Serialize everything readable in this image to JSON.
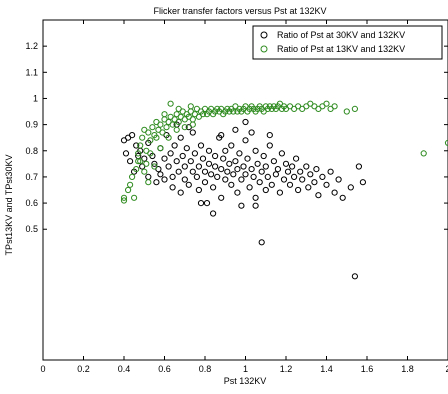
{
  "chart_data": {
    "type": "scatter",
    "title": "Flicker transfer factors versus Pst at 132KV",
    "xlabel": "Pst 132KV",
    "ylabel": "TPst13KV and TPst30KV",
    "xlim": [
      0,
      2
    ],
    "ylim": [
      0,
      1.3
    ],
    "x_ticks": [
      "0",
      "0.2",
      "0.4",
      "0.6",
      "0.8",
      "1",
      "1.2",
      "1.4",
      "1.6",
      "1.8",
      "2"
    ],
    "y_ticks": [
      "0.5",
      "0.6",
      "0.7",
      "0.8",
      "0.9",
      "1",
      "1.1",
      "1.2"
    ],
    "grid": false,
    "legend_position": "top-right",
    "series": [
      {
        "name": "Ratio of Pst at 30KV and 132KV",
        "color": "#000000",
        "marker": "circle-open",
        "points": [
          [
            0.4,
            0.84
          ],
          [
            0.42,
            0.85
          ],
          [
            0.44,
            0.86
          ],
          [
            0.41,
            0.79
          ],
          [
            0.43,
            0.76
          ],
          [
            0.45,
            0.72
          ],
          [
            0.46,
            0.82
          ],
          [
            0.48,
            0.8
          ],
          [
            0.47,
            0.78
          ],
          [
            0.49,
            0.74
          ],
          [
            0.5,
            0.77
          ],
          [
            0.52,
            0.7
          ],
          [
            0.52,
            0.83
          ],
          [
            0.54,
            0.78
          ],
          [
            0.55,
            0.75
          ],
          [
            0.56,
            0.68
          ],
          [
            0.57,
            0.73
          ],
          [
            0.58,
            0.81
          ],
          [
            0.58,
            0.71
          ],
          [
            0.6,
            0.69
          ],
          [
            0.6,
            0.77
          ],
          [
            0.61,
            0.86
          ],
          [
            0.62,
            0.74
          ],
          [
            0.63,
            0.79
          ],
          [
            0.64,
            0.7
          ],
          [
            0.64,
            0.66
          ],
          [
            0.65,
            0.82
          ],
          [
            0.66,
            0.76
          ],
          [
            0.67,
            0.72
          ],
          [
            0.68,
            0.85
          ],
          [
            0.68,
            0.64
          ],
          [
            0.69,
            0.78
          ],
          [
            0.7,
            0.74
          ],
          [
            0.7,
            0.69
          ],
          [
            0.71,
            0.81
          ],
          [
            0.72,
            0.67
          ],
          [
            0.73,
            0.76
          ],
          [
            0.74,
            0.72
          ],
          [
            0.74,
            0.87
          ],
          [
            0.75,
            0.79
          ],
          [
            0.76,
            0.7
          ],
          [
            0.77,
            0.74
          ],
          [
            0.77,
            0.65
          ],
          [
            0.78,
            0.82
          ],
          [
            0.79,
            0.77
          ],
          [
            0.8,
            0.72
          ],
          [
            0.8,
            0.68
          ],
          [
            0.81,
            0.6
          ],
          [
            0.82,
            0.75
          ],
          [
            0.82,
            0.8
          ],
          [
            0.83,
            0.71
          ],
          [
            0.84,
            0.66
          ],
          [
            0.85,
            0.78
          ],
          [
            0.85,
            0.74
          ],
          [
            0.86,
            0.7
          ],
          [
            0.87,
            0.85
          ],
          [
            0.88,
            0.73
          ],
          [
            0.88,
            0.62
          ],
          [
            0.89,
            0.77
          ],
          [
            0.9,
            0.69
          ],
          [
            0.9,
            0.8
          ],
          [
            0.91,
            0.72
          ],
          [
            0.92,
            0.75
          ],
          [
            0.93,
            0.67
          ],
          [
            0.93,
            0.82
          ],
          [
            0.94,
            0.71
          ],
          [
            0.95,
            0.76
          ],
          [
            0.96,
            0.64
          ],
          [
            0.96,
            0.73
          ],
          [
            0.97,
            0.79
          ],
          [
            0.98,
            0.69
          ],
          [
            0.99,
            0.74
          ],
          [
            1.0,
            0.71
          ],
          [
            1.0,
            0.84
          ],
          [
            1.01,
            0.77
          ],
          [
            1.02,
            0.66
          ],
          [
            1.03,
            0.73
          ],
          [
            1.04,
            0.7
          ],
          [
            1.05,
            0.8
          ],
          [
            1.05,
            0.62
          ],
          [
            1.06,
            0.75
          ],
          [
            1.07,
            0.68
          ],
          [
            1.08,
            0.72
          ],
          [
            1.09,
            0.78
          ],
          [
            1.1,
            0.65
          ],
          [
            1.1,
            0.74
          ],
          [
            1.11,
            0.7
          ],
          [
            1.12,
            0.82
          ],
          [
            1.13,
            0.67
          ],
          [
            1.14,
            0.76
          ],
          [
            1.15,
            0.71
          ],
          [
            1.16,
            0.73
          ],
          [
            1.17,
            0.64
          ],
          [
            1.18,
            0.79
          ],
          [
            1.19,
            0.69
          ],
          [
            1.2,
            0.75
          ],
          [
            1.21,
            0.72
          ],
          [
            1.22,
            0.67
          ],
          [
            1.23,
            0.74
          ],
          [
            1.24,
            0.7
          ],
          [
            1.25,
            0.77
          ],
          [
            1.26,
            0.65
          ],
          [
            1.27,
            0.72
          ],
          [
            1.28,
            0.69
          ],
          [
            1.3,
            0.74
          ],
          [
            1.31,
            0.66
          ],
          [
            1.32,
            0.71
          ],
          [
            1.34,
            0.68
          ],
          [
            1.35,
            0.73
          ],
          [
            1.36,
            0.63
          ],
          [
            1.38,
            0.7
          ],
          [
            1.4,
            0.67
          ],
          [
            1.42,
            0.72
          ],
          [
            1.44,
            0.64
          ],
          [
            1.46,
            0.69
          ],
          [
            1.48,
            0.62
          ],
          [
            1.52,
            0.66
          ],
          [
            1.56,
            0.74
          ],
          [
            1.58,
            0.68
          ],
          [
            0.84,
            0.56
          ],
          [
            0.98,
            0.59
          ],
          [
            1.05,
            0.59
          ],
          [
            0.78,
            0.6
          ],
          [
            1.08,
            0.45
          ],
          [
            1.54,
            0.32
          ],
          [
            1.03,
            0.87
          ],
          [
            1.12,
            0.86
          ],
          [
            0.95,
            0.88
          ],
          [
            0.66,
            0.9
          ],
          [
            0.72,
            0.89
          ],
          [
            1.0,
            0.91
          ],
          [
            0.88,
            0.86
          ]
        ]
      },
      {
        "name": "Ratio of Pst at 13KV and 132KV",
        "color": "#2e8b1f",
        "marker": "circle-open",
        "points": [
          [
            0.4,
            0.61
          ],
          [
            0.4,
            0.62
          ],
          [
            0.42,
            0.65
          ],
          [
            0.43,
            0.67
          ],
          [
            0.44,
            0.7
          ],
          [
            0.45,
            0.62
          ],
          [
            0.46,
            0.73
          ],
          [
            0.47,
            0.76
          ],
          [
            0.47,
            0.79
          ],
          [
            0.48,
            0.82
          ],
          [
            0.49,
            0.85
          ],
          [
            0.5,
            0.88
          ],
          [
            0.51,
            0.8
          ],
          [
            0.52,
            0.87
          ],
          [
            0.53,
            0.84
          ],
          [
            0.54,
            0.89
          ],
          [
            0.55,
            0.86
          ],
          [
            0.56,
            0.91
          ],
          [
            0.57,
            0.88
          ],
          [
            0.58,
            0.9
          ],
          [
            0.59,
            0.87
          ],
          [
            0.6,
            0.92
          ],
          [
            0.61,
            0.89
          ],
          [
            0.62,
            0.91
          ],
          [
            0.63,
            0.93
          ],
          [
            0.64,
            0.9
          ],
          [
            0.65,
            0.92
          ],
          [
            0.66,
            0.94
          ],
          [
            0.67,
            0.91
          ],
          [
            0.68,
            0.93
          ],
          [
            0.69,
            0.95
          ],
          [
            0.7,
            0.92
          ],
          [
            0.71,
            0.94
          ],
          [
            0.72,
            0.93
          ],
          [
            0.73,
            0.95
          ],
          [
            0.74,
            0.92
          ],
          [
            0.75,
            0.94
          ],
          [
            0.76,
            0.96
          ],
          [
            0.77,
            0.93
          ],
          [
            0.78,
            0.95
          ],
          [
            0.79,
            0.94
          ],
          [
            0.8,
            0.96
          ],
          [
            0.81,
            0.94
          ],
          [
            0.82,
            0.95
          ],
          [
            0.83,
            0.96
          ],
          [
            0.84,
            0.94
          ],
          [
            0.85,
            0.95
          ],
          [
            0.86,
            0.96
          ],
          [
            0.87,
            0.95
          ],
          [
            0.88,
            0.96
          ],
          [
            0.89,
            0.94
          ],
          [
            0.9,
            0.95
          ],
          [
            0.91,
            0.96
          ],
          [
            0.92,
            0.95
          ],
          [
            0.93,
            0.96
          ],
          [
            0.94,
            0.95
          ],
          [
            0.95,
            0.97
          ],
          [
            0.96,
            0.95
          ],
          [
            0.97,
            0.96
          ],
          [
            0.98,
            0.95
          ],
          [
            0.99,
            0.96
          ],
          [
            1.0,
            0.97
          ],
          [
            1.01,
            0.95
          ],
          [
            1.02,
            0.96
          ],
          [
            1.03,
            0.97
          ],
          [
            1.04,
            0.96
          ],
          [
            1.05,
            0.95
          ],
          [
            1.06,
            0.96
          ],
          [
            1.07,
            0.97
          ],
          [
            1.08,
            0.96
          ],
          [
            1.09,
            0.95
          ],
          [
            1.1,
            0.97
          ],
          [
            1.11,
            0.96
          ],
          [
            1.12,
            0.97
          ],
          [
            1.13,
            0.96
          ],
          [
            1.14,
            0.97
          ],
          [
            1.15,
            0.96
          ],
          [
            1.16,
            0.97
          ],
          [
            1.17,
            0.98
          ],
          [
            1.18,
            0.96
          ],
          [
            1.19,
            0.97
          ],
          [
            1.2,
            0.96
          ],
          [
            1.22,
            0.97
          ],
          [
            1.24,
            0.96
          ],
          [
            1.26,
            0.97
          ],
          [
            1.28,
            0.96
          ],
          [
            1.3,
            0.97
          ],
          [
            1.32,
            0.98
          ],
          [
            1.34,
            0.97
          ],
          [
            1.36,
            0.96
          ],
          [
            1.38,
            0.97
          ],
          [
            1.4,
            0.98
          ],
          [
            1.42,
            0.96
          ],
          [
            1.44,
            0.97
          ],
          [
            1.5,
            0.95
          ],
          [
            1.54,
            0.96
          ],
          [
            1.88,
            0.79
          ],
          [
            2.0,
            0.83
          ],
          [
            0.48,
            0.76
          ],
          [
            0.5,
            0.72
          ],
          [
            0.52,
            0.68
          ],
          [
            0.55,
            0.74
          ],
          [
            0.58,
            0.81
          ],
          [
            0.62,
            0.85
          ],
          [
            0.66,
            0.88
          ],
          [
            0.7,
            0.89
          ],
          [
            0.74,
            0.9
          ],
          [
            0.63,
            0.98
          ],
          [
            0.67,
            0.96
          ],
          [
            0.73,
            0.97
          ],
          [
            0.6,
            0.94
          ],
          [
            0.56,
            0.85
          ],
          [
            0.53,
            0.79
          ],
          [
            0.51,
            0.75
          ]
        ]
      }
    ]
  }
}
